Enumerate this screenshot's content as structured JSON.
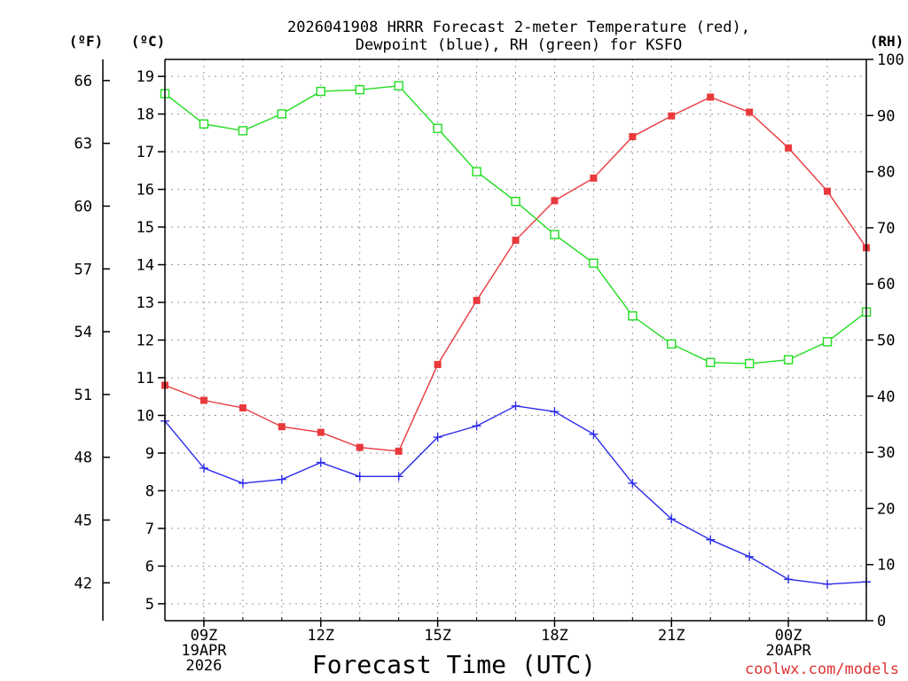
{
  "chart_data": {
    "type": "line",
    "title": [
      "2026041908 HRRR Forecast 2-meter Temperature (red),",
      "Dewpoint (blue), RH (green) for KSFO"
    ],
    "xlabel": "Forecast Time (UTC)",
    "watermark": "coolwx.com/models",
    "axis_units": {
      "fahrenheit": "(ºF)",
      "celsius": "(ºC)",
      "rh": "(RH)"
    },
    "x_hours": [
      8,
      9,
      10,
      11,
      12,
      13,
      14,
      15,
      16,
      17,
      18,
      19,
      20,
      21,
      22,
      23,
      24,
      25,
      26
    ],
    "x_ticks": [
      {
        "hour": 9,
        "lines": [
          "09Z",
          "19APR",
          "2026"
        ]
      },
      {
        "hour": 12,
        "lines": [
          "12Z"
        ]
      },
      {
        "hour": 15,
        "lines": [
          "15Z"
        ]
      },
      {
        "hour": 18,
        "lines": [
          "18Z"
        ]
      },
      {
        "hour": 21,
        "lines": [
          "21Z"
        ]
      },
      {
        "hour": 24,
        "lines": [
          "00Z",
          "20APR"
        ]
      }
    ],
    "celsius_range": [
      4.55,
      19.45
    ],
    "celsius_ticks": [
      5,
      6,
      7,
      8,
      9,
      10,
      11,
      12,
      13,
      14,
      15,
      16,
      17,
      18,
      19
    ],
    "fahrenheit_ticks": [
      42,
      45,
      48,
      51,
      54,
      57,
      60,
      63,
      66
    ],
    "rh_range": [
      0,
      100
    ],
    "rh_ticks": [
      0,
      10,
      20,
      30,
      40,
      50,
      60,
      70,
      80,
      90,
      100
    ],
    "series": [
      {
        "name": "Temperature",
        "axis": "celsius",
        "color": "#e8393c",
        "marker": "filled-square",
        "values": [
          10.8,
          10.4,
          10.2,
          9.7,
          9.55,
          9.15,
          9.05,
          11.35,
          13.05,
          14.65,
          15.7,
          16.3,
          17.4,
          17.95,
          18.45,
          18.05,
          17.1,
          15.95,
          14.45
        ]
      },
      {
        "name": "Dewpoint",
        "axis": "celsius",
        "color": "#2b2bea",
        "marker": "plus",
        "values": [
          9.85,
          8.6,
          8.2,
          8.3,
          8.75,
          8.38,
          8.38,
          9.42,
          9.72,
          10.25,
          10.1,
          9.5,
          8.2,
          7.25,
          6.7,
          6.25,
          5.65,
          5.52,
          5.58
        ]
      },
      {
        "name": "RH",
        "axis": "rh",
        "color": "#22dd22",
        "marker": "open-square",
        "values": [
          93.9,
          88.5,
          87.3,
          90.3,
          94.3,
          94.6,
          95.3,
          87.7,
          80.0,
          74.7,
          68.8,
          63.7,
          54.3,
          49.3,
          46.0,
          45.8,
          46.5,
          49.7,
          55.0
        ]
      }
    ]
  }
}
